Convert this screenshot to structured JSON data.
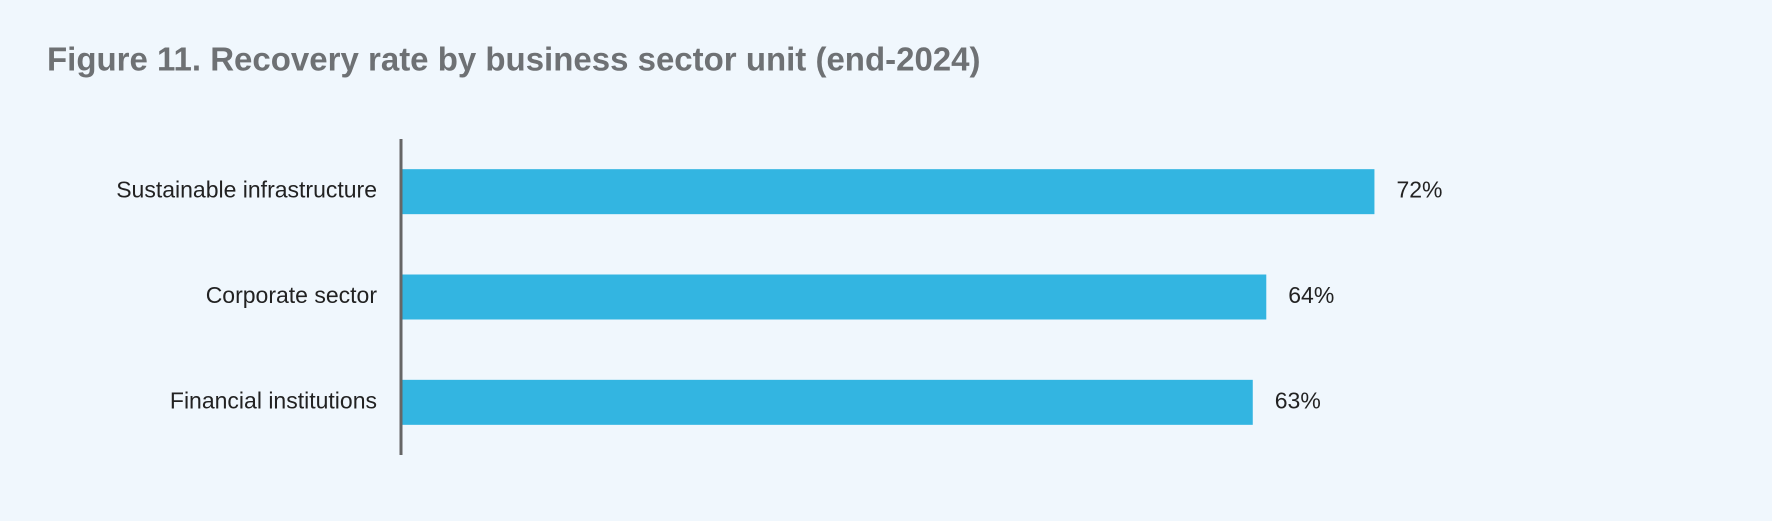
{
  "chart_data": {
    "type": "bar",
    "orientation": "horizontal",
    "title": "Figure 11. Recovery rate by business sector unit (end-2024)",
    "categories": [
      "Sustainable infrastructure",
      "Corporate sector",
      "Financial institutions"
    ],
    "values": [
      72,
      64,
      63
    ],
    "value_labels": [
      "72%",
      "64%",
      "63%"
    ],
    "color": "#33b5e1"
  }
}
